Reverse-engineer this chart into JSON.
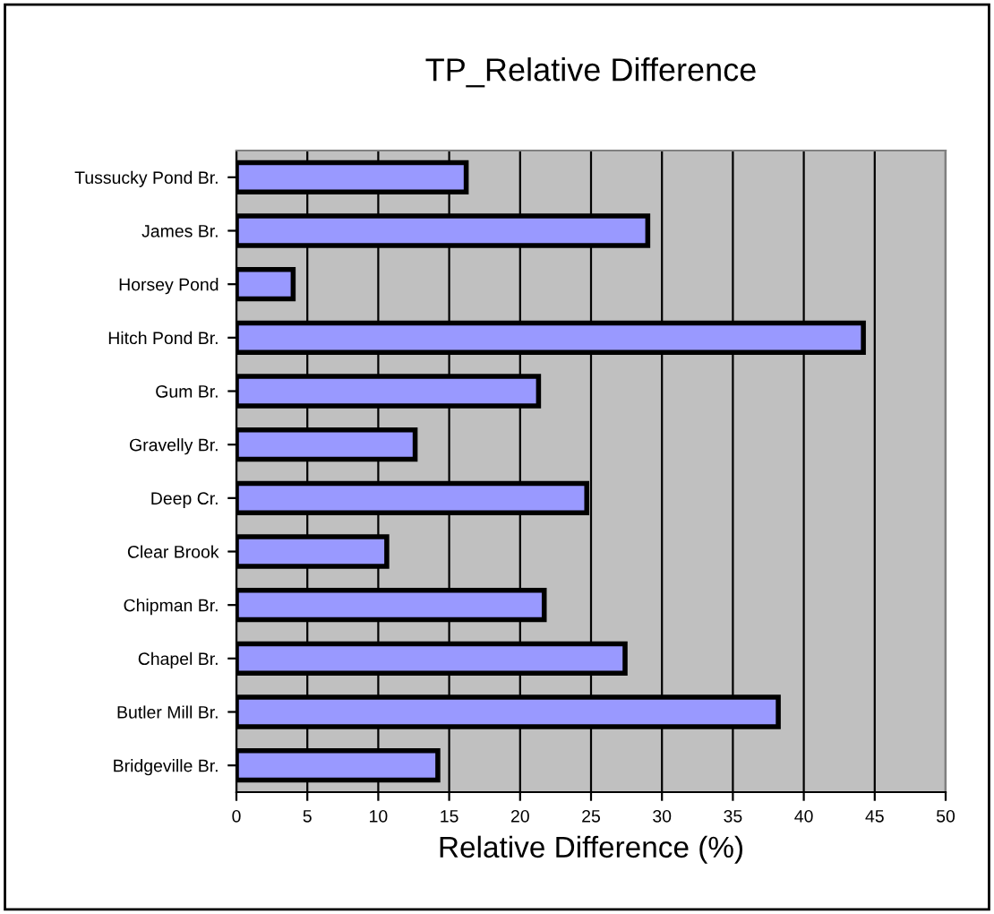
{
  "chart_data": {
    "type": "bar",
    "orientation": "horizontal",
    "title": "TP_Relative Difference",
    "xlabel": "Relative Difference (%)",
    "categories": [
      "Tussucky Pond Br.",
      "James Br.",
      "Horsey Pond",
      "Hitch Pond Br.",
      "Gum Br.",
      "Gravelly Br.",
      "Deep Cr.",
      "Clear Brook",
      "Chipman Br.",
      "Chapel Br.",
      "Butler Mill Br.",
      "Bridgeville Br."
    ],
    "values": [
      16.2,
      29.0,
      4.0,
      44.2,
      21.3,
      12.6,
      24.7,
      10.6,
      21.7,
      27.4,
      38.2,
      14.2
    ],
    "color": "#9999ff",
    "xlim": [
      0,
      50
    ],
    "xticks": [
      0,
      5,
      10,
      15,
      20,
      25,
      30,
      35,
      40,
      45,
      50
    ],
    "grid": "x"
  }
}
